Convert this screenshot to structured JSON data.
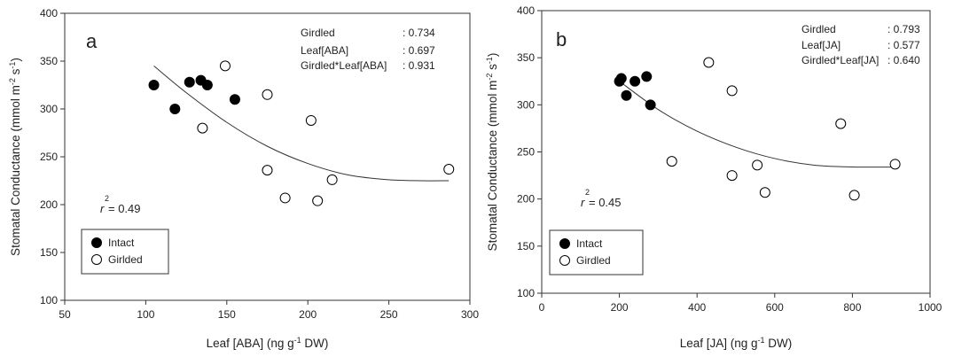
{
  "chart_data": [
    {
      "type": "scatter",
      "panel_letter": "a",
      "xlabel": "Leaf [ABA] (ng g-1 DW)",
      "xlabel_parts": [
        "Leaf [ABA] (ng g",
        "-1",
        " DW)"
      ],
      "ylabel": "Stomatal Conductance (mmol m-2 s-1)",
      "ylabel_parts": [
        "Stomatal Conductance (mmol m",
        "-2",
        " s",
        "-1",
        ")"
      ],
      "xlim": [
        50,
        300
      ],
      "ylim": [
        100,
        400
      ],
      "xticks": [
        50,
        100,
        150,
        200,
        250,
        300
      ],
      "yticks": [
        100,
        150,
        200,
        250,
        300,
        350,
        400
      ],
      "legend_position": "bottom-left",
      "legend": [
        {
          "label": "Intact",
          "marker": "filled-circle"
        },
        {
          "label": "Girlded",
          "marker": "open-circle"
        }
      ],
      "stats": [
        {
          "label": "Girdled",
          "value": ": 0.734"
        },
        {
          "label": "Leaf[ABA]",
          "value": ": 0.697"
        },
        {
          "label": "Girdled*Leaf[ABA]",
          "value": ": 0.931"
        }
      ],
      "r2": {
        "prefix": "r",
        "sup": "2",
        "value": "= 0.49"
      },
      "series": [
        {
          "name": "Intact",
          "filled": true,
          "x": [
            105,
            118,
            127,
            134,
            138,
            155
          ],
          "y": [
            325,
            300,
            328,
            330,
            325,
            310
          ]
        },
        {
          "name": "Girlded",
          "filled": false,
          "x": [
            135,
            149,
            175,
            175,
            186,
            202,
            206,
            215,
            287
          ],
          "y": [
            280,
            345,
            315,
            236,
            207,
            288,
            204,
            226,
            237
          ]
        }
      ],
      "fit": {
        "x": [
          105,
          125,
          150,
          175,
          200,
          225,
          250,
          270,
          287
        ],
        "y": [
          345,
          317,
          286,
          261,
          243,
          231,
          226,
          225,
          225
        ]
      }
    },
    {
      "type": "scatter",
      "panel_letter": "b",
      "xlabel": "Leaf [JA] (ng g-1 DW)",
      "xlabel_parts": [
        "Leaf [JA] (ng g",
        "-1",
        " DW)"
      ],
      "ylabel": "Stomatal Conductance (mmol m-2 s-1)",
      "ylabel_parts": [
        "Stomatal Conductance (mmol m",
        "-2",
        " s",
        "-1",
        ")"
      ],
      "xlim": [
        0,
        1000
      ],
      "ylim": [
        100,
        400
      ],
      "xticks": [
        0,
        200,
        400,
        600,
        800,
        1000
      ],
      "yticks": [
        100,
        150,
        200,
        250,
        300,
        350,
        400
      ],
      "legend_position": "bottom-left",
      "legend": [
        {
          "label": "Intact",
          "marker": "filled-circle"
        },
        {
          "label": "Girdled",
          "marker": "open-circle"
        }
      ],
      "stats": [
        {
          "label": "Girdled",
          "value": ": 0.793"
        },
        {
          "label": "Leaf[JA]",
          "value": ": 0.577"
        },
        {
          "label": "Girdled*Leaf[JA]",
          "value": ": 0.640"
        }
      ],
      "r2": {
        "prefix": "r",
        "sup": "2",
        "value": "= 0.45"
      },
      "series": [
        {
          "name": "Intact",
          "filled": true,
          "x": [
            200,
            205,
            218,
            240,
            270,
            280
          ],
          "y": [
            325,
            328,
            310,
            325,
            330,
            300
          ]
        },
        {
          "name": "Girdled",
          "filled": false,
          "x": [
            335,
            430,
            490,
            490,
            555,
            575,
            770,
            805,
            910
          ],
          "y": [
            240,
            345,
            315,
            225,
            236,
            207,
            280,
            204,
            237
          ]
        }
      ],
      "fit": {
        "x": [
          200,
          300,
          400,
          500,
          600,
          700,
          800,
          910
        ],
        "y": [
          325,
          295,
          272,
          255,
          243,
          236,
          234,
          234
        ]
      }
    }
  ]
}
